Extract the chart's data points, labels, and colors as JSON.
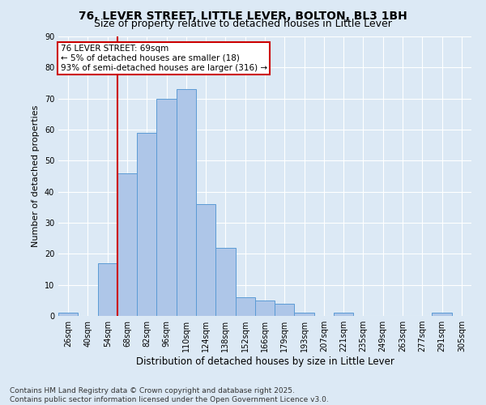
{
  "title": "76, LEVER STREET, LITTLE LEVER, BOLTON, BL3 1BH",
  "subtitle": "Size of property relative to detached houses in Little Lever",
  "xlabel": "Distribution of detached houses by size in Little Lever",
  "ylabel": "Number of detached properties",
  "categories": [
    "26sqm",
    "40sqm",
    "54sqm",
    "68sqm",
    "82sqm",
    "96sqm",
    "110sqm",
    "124sqm",
    "138sqm",
    "152sqm",
    "166sqm",
    "179sqm",
    "193sqm",
    "207sqm",
    "221sqm",
    "235sqm",
    "249sqm",
    "263sqm",
    "277sqm",
    "291sqm",
    "305sqm"
  ],
  "values": [
    1,
    0,
    17,
    46,
    59,
    70,
    73,
    36,
    22,
    6,
    5,
    4,
    1,
    0,
    1,
    0,
    0,
    0,
    0,
    1,
    0
  ],
  "bar_color": "#aec6e8",
  "bar_edge_color": "#5b9bd5",
  "vline_x_index": 3,
  "vline_color": "#cc0000",
  "annotation_text": "76 LEVER STREET: 69sqm\n← 5% of detached houses are smaller (18)\n93% of semi-detached houses are larger (316) →",
  "annotation_box_color": "#ffffff",
  "annotation_box_edge": "#cc0000",
  "ylim": [
    0,
    90
  ],
  "yticks": [
    0,
    10,
    20,
    30,
    40,
    50,
    60,
    70,
    80,
    90
  ],
  "bg_color": "#dce9f5",
  "plot_bg_color": "#dce9f5",
  "footer": "Contains HM Land Registry data © Crown copyright and database right 2025.\nContains public sector information licensed under the Open Government Licence v3.0.",
  "title_fontsize": 10,
  "subtitle_fontsize": 9,
  "xlabel_fontsize": 8.5,
  "ylabel_fontsize": 8,
  "tick_fontsize": 7,
  "footer_fontsize": 6.5,
  "annotation_fontsize": 7.5
}
